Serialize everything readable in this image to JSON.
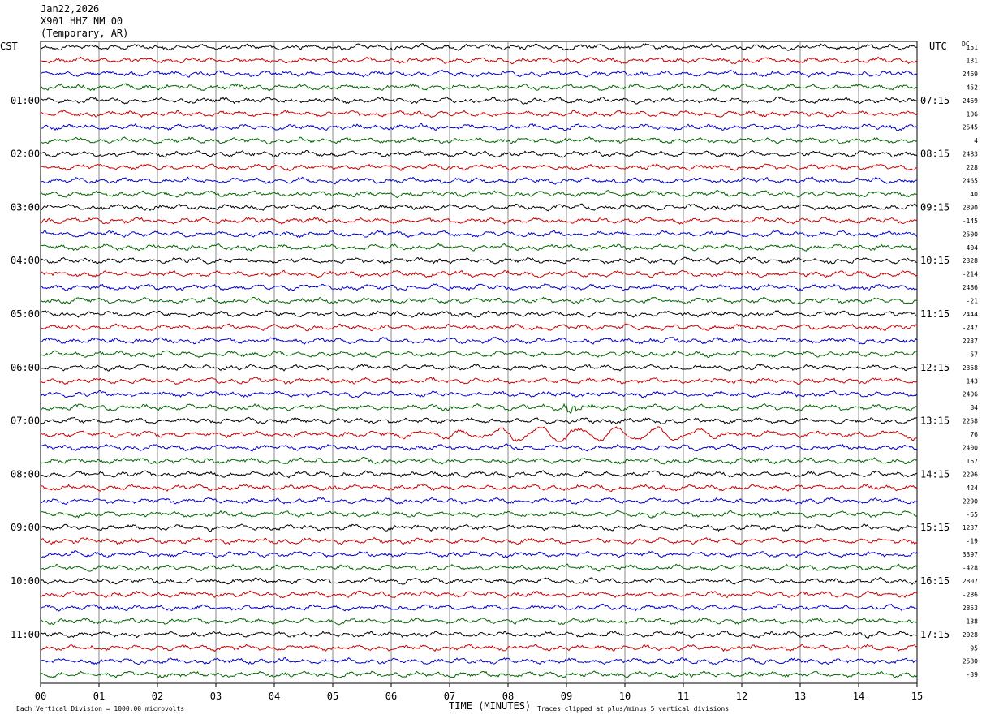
{
  "header": {
    "date": "Jan22,2026",
    "station": "X901 HHZ NM 00",
    "location": "(Temporary, AR)"
  },
  "labels": {
    "left_tz": "CST",
    "right_tz": "UTC",
    "dc": "DC",
    "x_title": "TIME (MINUTES)",
    "footer_left": "Each Vertical Division = 1000.00 microvolts",
    "footer_right": "Traces clipped at plus/minus 5 vertical divisions"
  },
  "chart_data": {
    "type": "line",
    "title": "",
    "xlabel": "TIME (MINUTES)",
    "ylabel": "",
    "xlim": [
      0,
      15
    ],
    "x_ticks": [
      "00",
      "01",
      "02",
      "03",
      "04",
      "05",
      "06",
      "07",
      "08",
      "09",
      "10",
      "11",
      "12",
      "13",
      "14",
      "15"
    ],
    "grid": true,
    "colors": [
      "#000000",
      "#cc0000",
      "#0000cc",
      "#006600"
    ],
    "left_hour_labels": [
      "01:00",
      "02:00",
      "03:00",
      "04:00",
      "05:00",
      "06:00",
      "07:00",
      "08:00",
      "09:00",
      "10:00",
      "11:00"
    ],
    "right_hour_labels": [
      "07:15",
      "08:15",
      "09:15",
      "10:15",
      "11:15",
      "12:15",
      "13:15",
      "14:15",
      "15:15",
      "16:15",
      "17:15"
    ],
    "trace_count": 48,
    "dc_offsets": [
      "151",
      "131",
      "2469",
      "452",
      "2469",
      "106",
      "2545",
      "4",
      "2483",
      "228",
      "2465",
      "40",
      "2890",
      "-145",
      "2500",
      "404",
      "2328",
      "-214",
      "2486",
      "-21",
      "2444",
      "-247",
      "2237",
      "-57",
      "2358",
      "143",
      "2406",
      "84",
      "2258",
      "76",
      "2400",
      "167",
      "2296",
      "424",
      "2290",
      "-55",
      "1237",
      "-19",
      "3397",
      "-428",
      "2807",
      "-286",
      "2853",
      "-138",
      "2028",
      "95",
      "2580",
      "-39"
    ],
    "events": [
      {
        "trace": 27,
        "start_min": 8.9,
        "end_min": 10.2,
        "amp": 9,
        "period": "short"
      },
      {
        "trace": 29,
        "start_min": 5.2,
        "end_min": 15.0,
        "amp": 8,
        "period": "long"
      },
      {
        "trace": 35,
        "start_min": 12.1,
        "end_min": 13.2,
        "amp": 4,
        "period": "short"
      },
      {
        "trace": 16,
        "start_min": 11.8,
        "end_min": 12.1,
        "amp": 5,
        "period": "short"
      }
    ]
  }
}
